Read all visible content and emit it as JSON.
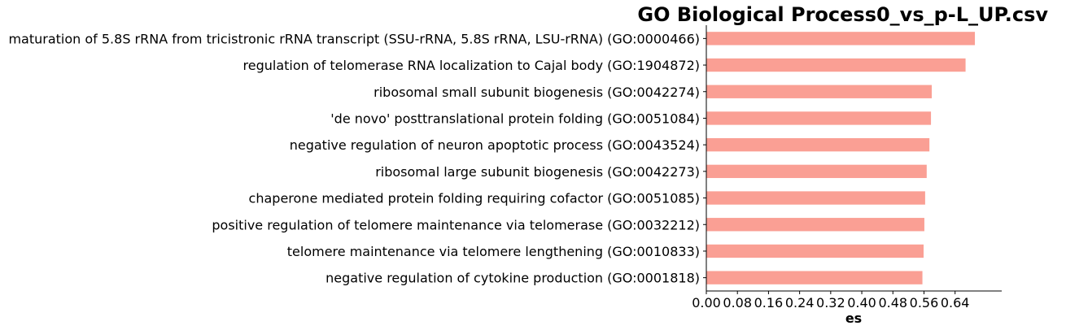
{
  "chart_data": {
    "type": "bar",
    "orientation": "horizontal",
    "title": "GO Biological Process0_vs_p-L_UP.csv",
    "xlabel": "es",
    "ylabel": "",
    "xlim": [
      0,
      0.76
    ],
    "xticks": [
      "0.00",
      "0.08",
      "0.16",
      "0.24",
      "0.32",
      "0.40",
      "0.48",
      "0.56",
      "0.64"
    ],
    "bar_color": "#fa9f94",
    "grid": false,
    "categories": [
      "maturation of 5.8S rRNA from tricistronic rRNA transcript (SSU-rRNA, 5.8S rRNA, LSU-rRNA) (GO:0000466)",
      "regulation of telomerase RNA localization to Cajal body (GO:1904872)",
      "ribosomal small subunit biogenesis (GO:0042274)",
      "'de novo' posttranslational protein folding (GO:0051084)",
      "negative regulation of neuron apoptotic process (GO:0043524)",
      "ribosomal large subunit biogenesis (GO:0042273)",
      "chaperone mediated protein folding requiring cofactor (GO:0051085)",
      "positive regulation of telomere maintenance via telomerase (GO:0032212)",
      "telomere maintenance via telomere lengthening (GO:0010833)",
      "negative regulation of cytokine production (GO:0001818)"
    ],
    "values": [
      0.691,
      0.667,
      0.58,
      0.578,
      0.574,
      0.567,
      0.563,
      0.561,
      0.559,
      0.556
    ]
  }
}
